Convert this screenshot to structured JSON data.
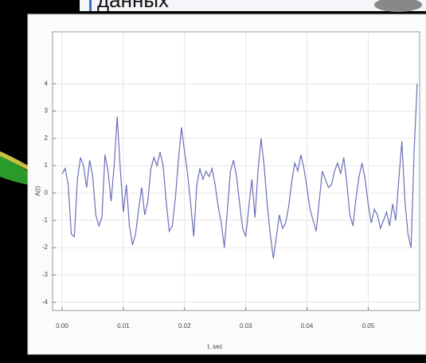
{
  "header": {
    "text": "данных"
  },
  "chart_data": {
    "type": "line",
    "xlabel": "t, sec",
    "ylabel": "A(t)",
    "x": [
      0.0,
      0.0005,
      0.001,
      0.0015,
      0.002,
      0.0025,
      0.003,
      0.0035,
      0.004,
      0.0045,
      0.005,
      0.0055,
      0.006,
      0.0065,
      0.007,
      0.0075,
      0.008,
      0.0085,
      0.009,
      0.0095,
      0.01,
      0.0105,
      0.011,
      0.0115,
      0.012,
      0.0125,
      0.013,
      0.0135,
      0.014,
      0.0145,
      0.015,
      0.0155,
      0.016,
      0.0165,
      0.017,
      0.0175,
      0.018,
      0.0185,
      0.019,
      0.0195,
      0.02,
      0.0205,
      0.021,
      0.0215,
      0.022,
      0.0225,
      0.023,
      0.0235,
      0.024,
      0.0245,
      0.025,
      0.0255,
      0.026,
      0.0265,
      0.027,
      0.0275,
      0.028,
      0.0285,
      0.029,
      0.0295,
      0.03,
      0.0305,
      0.031,
      0.0315,
      0.032,
      0.0325,
      0.033,
      0.0335,
      0.034,
      0.0345,
      0.035,
      0.0355,
      0.036,
      0.0365,
      0.037,
      0.0375,
      0.038,
      0.0385,
      0.039,
      0.0395,
      0.04,
      0.0405,
      0.041,
      0.0415,
      0.042,
      0.0425,
      0.043,
      0.0435,
      0.044,
      0.0445,
      0.045,
      0.0455,
      0.046,
      0.0465,
      0.047,
      0.0475,
      0.048,
      0.0485,
      0.049,
      0.0495,
      0.05,
      0.0505,
      0.051,
      0.0515,
      0.052,
      0.0525,
      0.053,
      0.0535,
      0.054,
      0.0545,
      0.055,
      0.0555,
      0.056,
      0.0565,
      0.057,
      0.0575,
      0.058
    ],
    "series": [
      {
        "color": "#6a6fb8",
        "values": [
          0.7,
          0.9,
          0.3,
          -1.5,
          -1.6,
          0.5,
          1.3,
          1.0,
          0.2,
          1.2,
          0.6,
          -0.8,
          -1.2,
          -0.9,
          1.4,
          0.8,
          -0.3,
          1.0,
          2.8,
          0.9,
          -0.7,
          0.3,
          -1.2,
          -1.9,
          -1.5,
          -0.6,
          0.2,
          -0.8,
          -0.3,
          0.9,
          1.3,
          1.0,
          1.5,
          1.0,
          -0.3,
          -1.4,
          -1.2,
          -0.2,
          1.2,
          2.4,
          1.5,
          0.7,
          -0.4,
          -1.6,
          0.3,
          0.9,
          0.5,
          0.8,
          0.6,
          0.9,
          0.3,
          -0.5,
          -1.1,
          -2.0,
          -0.6,
          0.8,
          1.2,
          0.6,
          -0.4,
          -1.3,
          -1.6,
          -0.5,
          0.5,
          -0.9,
          0.8,
          2.0,
          1.0,
          -0.4,
          -1.5,
          -2.4,
          -1.6,
          -0.8,
          -1.3,
          -1.1,
          -0.5,
          0.4,
          1.1,
          0.8,
          1.4,
          0.9,
          0.2,
          -0.6,
          -1.0,
          -1.4,
          -0.3,
          0.8,
          0.5,
          0.2,
          0.3,
          0.8,
          1.1,
          0.7,
          1.3,
          0.4,
          -0.8,
          -1.2,
          -0.2,
          0.6,
          1.1,
          0.5,
          -0.4,
          -1.1,
          -0.6,
          -0.8,
          -1.3,
          -1.0,
          -0.7,
          -1.2,
          -0.4,
          -1.0,
          0.5,
          1.9,
          -0.3,
          -1.5,
          -2.0,
          1.5,
          4.0
        ]
      }
    ],
    "xlim": [
      0,
      0.0584
    ],
    "ylim": [
      -4.3,
      5.9
    ],
    "xticks": [
      {
        "value": 0,
        "label": "0.00"
      },
      {
        "value": 0.01,
        "label": "0.01"
      },
      {
        "value": 0.02,
        "label": "0.02"
      },
      {
        "value": 0.03,
        "label": "0.03"
      },
      {
        "value": 0.04,
        "label": "0.04"
      },
      {
        "value": 0.05,
        "label": "0.05"
      }
    ],
    "yticks": [
      -4,
      -3,
      -2,
      -1,
      0,
      1,
      2,
      3,
      4
    ],
    "grid": true
  }
}
